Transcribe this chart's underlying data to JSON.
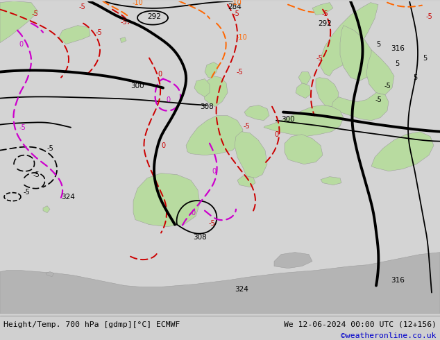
{
  "title_left": "Height/Temp. 700 hPa [gdmp][°C] ECMWF",
  "title_right": "We 12-06-2024 00:00 UTC (12+156)",
  "credit": "©weatheronline.co.uk",
  "bg_ocean": "#d4d4d4",
  "bg_land_green": "#b8dba0",
  "bg_land_gray": "#b4b4b4",
  "black": "#000000",
  "red": "#cc0000",
  "orange": "#ff6600",
  "magenta": "#cc00cc",
  "credit_color": "#0000cc",
  "footer_bg": "#d0d0d0"
}
